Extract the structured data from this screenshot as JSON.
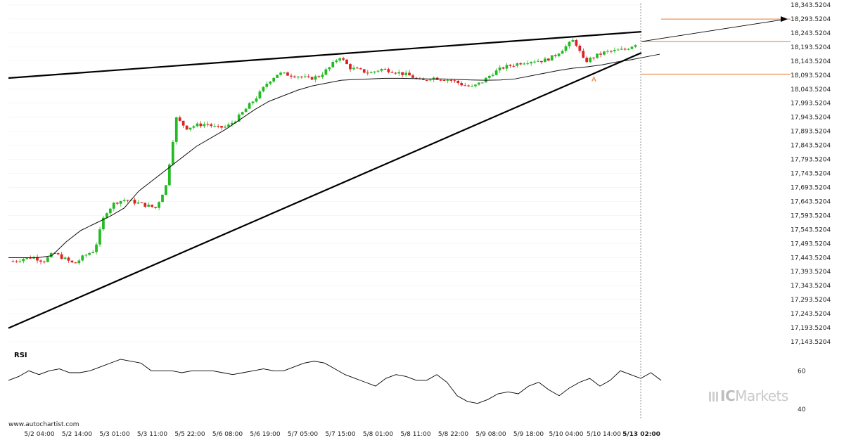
{
  "source": "www.autochartist.com",
  "brand": {
    "prefix": "IC",
    "name": "Markets"
  },
  "rsi_title": "RSI",
  "pattern_label": "A",
  "colors": {
    "up": "#22bb22",
    "down": "#dd2222",
    "forecast": "#e8782a",
    "line": "#000000",
    "grid": "#eeeeee"
  },
  "chart_data": {
    "type": "candlestick",
    "y_ticks": [
      "18,343.5204",
      "18,293.5204",
      "18,243.5204",
      "18,193.5204",
      "18,143.5204",
      "18,093.5204",
      "18,043.5204",
      "17,993.5204",
      "17,943.5204",
      "17,893.5204",
      "17,843.5204",
      "17,793.5204",
      "17,743.5204",
      "17,693.5204",
      "17,643.5204",
      "17,593.5204",
      "17,543.5204",
      "17,493.5204",
      "17,443.5204",
      "17,393.5204",
      "17,343.5204",
      "17,293.5204",
      "17,243.5204",
      "17,193.5204",
      "17,143.5204"
    ],
    "x_ticks": [
      "5/2 04:00",
      "5/2 14:00",
      "5/3 01:00",
      "5/3 11:00",
      "5/5 22:00",
      "5/6 08:00",
      "5/6 19:00",
      "5/7 05:00",
      "5/7 15:00",
      "5/8 01:00",
      "5/8 11:00",
      "5/8 22:00",
      "5/9 08:00",
      "5/9 18:00",
      "5/10 04:00",
      "5/10 14:00",
      "5/13 02:00"
    ],
    "ylim": [
      17143.5204,
      18343.5204
    ],
    "current_time": "5/13 02:00",
    "rsi": {
      "ticks": [
        "60",
        "40"
      ],
      "ylim": [
        37,
        70
      ]
    },
    "pattern": "rising wedge",
    "resistance_line": {
      "start": 18083,
      "end": 18248
    },
    "support_line": {
      "start": 17192,
      "end": 18173
    },
    "forecast_levels": [
      18293,
      18213,
      18097
    ],
    "ma_anchors": [
      17443,
      17443,
      17443,
      17450,
      17500,
      17540,
      17565,
      17590,
      17620,
      17680,
      17720,
      17760,
      17800,
      17840,
      17870,
      17900,
      17935,
      17970,
      18000,
      18020,
      18040,
      18055,
      18065,
      18075,
      18078,
      18080,
      18082,
      18082,
      18081,
      18080,
      18080,
      18078,
      18076,
      18075,
      18076,
      18080,
      18090,
      18100,
      18110,
      18118,
      18123,
      18130,
      18140,
      18148,
      18158,
      18168
    ],
    "rsi_anchors": [
      55,
      57,
      60,
      58,
      60,
      61,
      59,
      59,
      60,
      62,
      64,
      66,
      65,
      64,
      60,
      60,
      60,
      59,
      60,
      60,
      60,
      59,
      58,
      59,
      60,
      61,
      60,
      60,
      62,
      64,
      65,
      64,
      61,
      58,
      56,
      54,
      52,
      56,
      58,
      57,
      55,
      55,
      58,
      54,
      47,
      44,
      43,
      45,
      48,
      49,
      48,
      52,
      54,
      50,
      47,
      51,
      54,
      56,
      52,
      55,
      60,
      58,
      56,
      59,
      55
    ]
  }
}
